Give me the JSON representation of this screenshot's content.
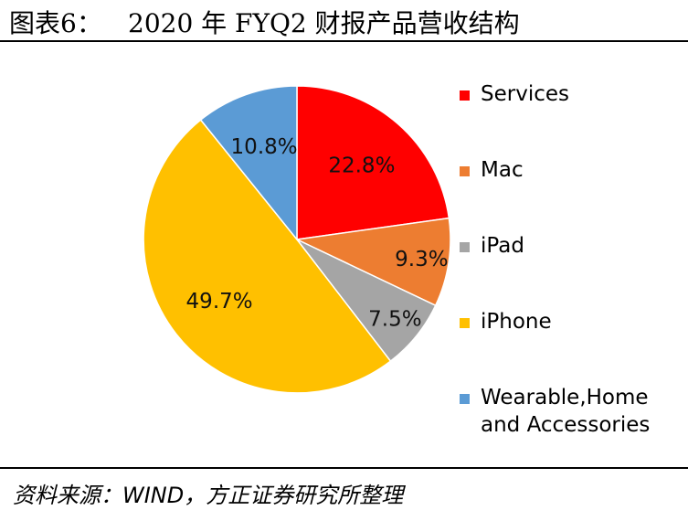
{
  "header": {
    "label": "图表6：",
    "title": "2020 年 FYQ2 财报产品营收结构"
  },
  "chart_data": {
    "type": "pie",
    "categories": [
      "Services",
      "Mac",
      "iPad",
      "iPhone",
      "Wearable,Home and Accessories"
    ],
    "values": [
      22.8,
      9.3,
      7.5,
      49.7,
      10.8
    ],
    "value_labels": [
      "22.8%",
      "9.3%",
      "7.5%",
      "49.7%",
      "10.8%"
    ],
    "colors": [
      "#FF0000",
      "#ED7D31",
      "#A5A5A5",
      "#FFC000",
      "#5B9BD5"
    ],
    "start": "12 o'clock",
    "direction": "clockwise",
    "legend_position": "right"
  },
  "legend": {
    "items": [
      {
        "label": "Services",
        "color": "#FF0000"
      },
      {
        "label": "Mac",
        "color": "#ED7D31"
      },
      {
        "label": "iPad",
        "color": "#A5A5A5"
      },
      {
        "label": "iPhone",
        "color": "#FFC000"
      },
      {
        "label": "Wearable,Home and Accessories",
        "color": "#5B9BD5"
      }
    ]
  },
  "footer": {
    "source": "资料来源：WIND，方正证券研究所整理"
  }
}
